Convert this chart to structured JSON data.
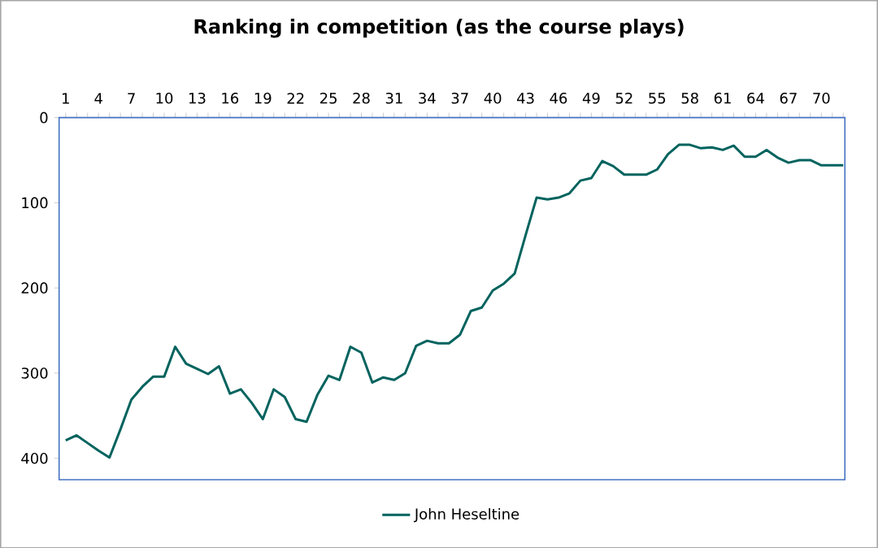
{
  "chart_data": {
    "type": "line",
    "title": "Ranking in competition (as the course plays)",
    "categories": [
      "1",
      null,
      null,
      "4",
      null,
      null,
      "7",
      null,
      null,
      "10",
      null,
      null,
      "13",
      null,
      null,
      "16",
      null,
      null,
      "19",
      null,
      null,
      "22",
      null,
      null,
      "25",
      null,
      null,
      "28",
      null,
      null,
      "31",
      null,
      null,
      "34",
      null,
      null,
      "37",
      null,
      null,
      "40",
      null,
      null,
      "43",
      null,
      null,
      "46",
      null,
      null,
      "49",
      null,
      null,
      "52",
      null,
      null,
      "55",
      null,
      null,
      "58",
      null,
      null,
      "61",
      null,
      null,
      "64",
      null,
      null,
      "67",
      null,
      null,
      "70",
      null,
      null
    ],
    "series": [
      {
        "name": "John Heseltine",
        "color": "#00635e",
        "values": [
          379,
          373,
          382,
          391,
          399,
          366,
          331,
          316,
          304,
          304,
          269,
          289,
          295,
          301,
          292,
          324,
          319,
          335,
          354,
          319,
          328,
          354,
          357,
          325,
          303,
          308,
          269,
          276,
          311,
          305,
          308,
          300,
          268,
          262,
          265,
          265,
          255,
          227,
          223,
          203,
          195,
          183,
          138,
          94,
          96,
          94,
          89,
          74,
          71,
          51,
          57,
          67,
          67,
          67,
          61,
          43,
          32,
          32,
          36,
          35,
          38,
          33,
          46,
          46,
          38,
          47,
          53,
          50,
          50,
          56,
          56,
          56
        ]
      }
    ],
    "ylim": [
      425,
      0
    ],
    "yticks": [
      0,
      100,
      200,
      300,
      400
    ],
    "grid": false,
    "legend": "bottom",
    "marker": "none",
    "line_style": "solid"
  }
}
